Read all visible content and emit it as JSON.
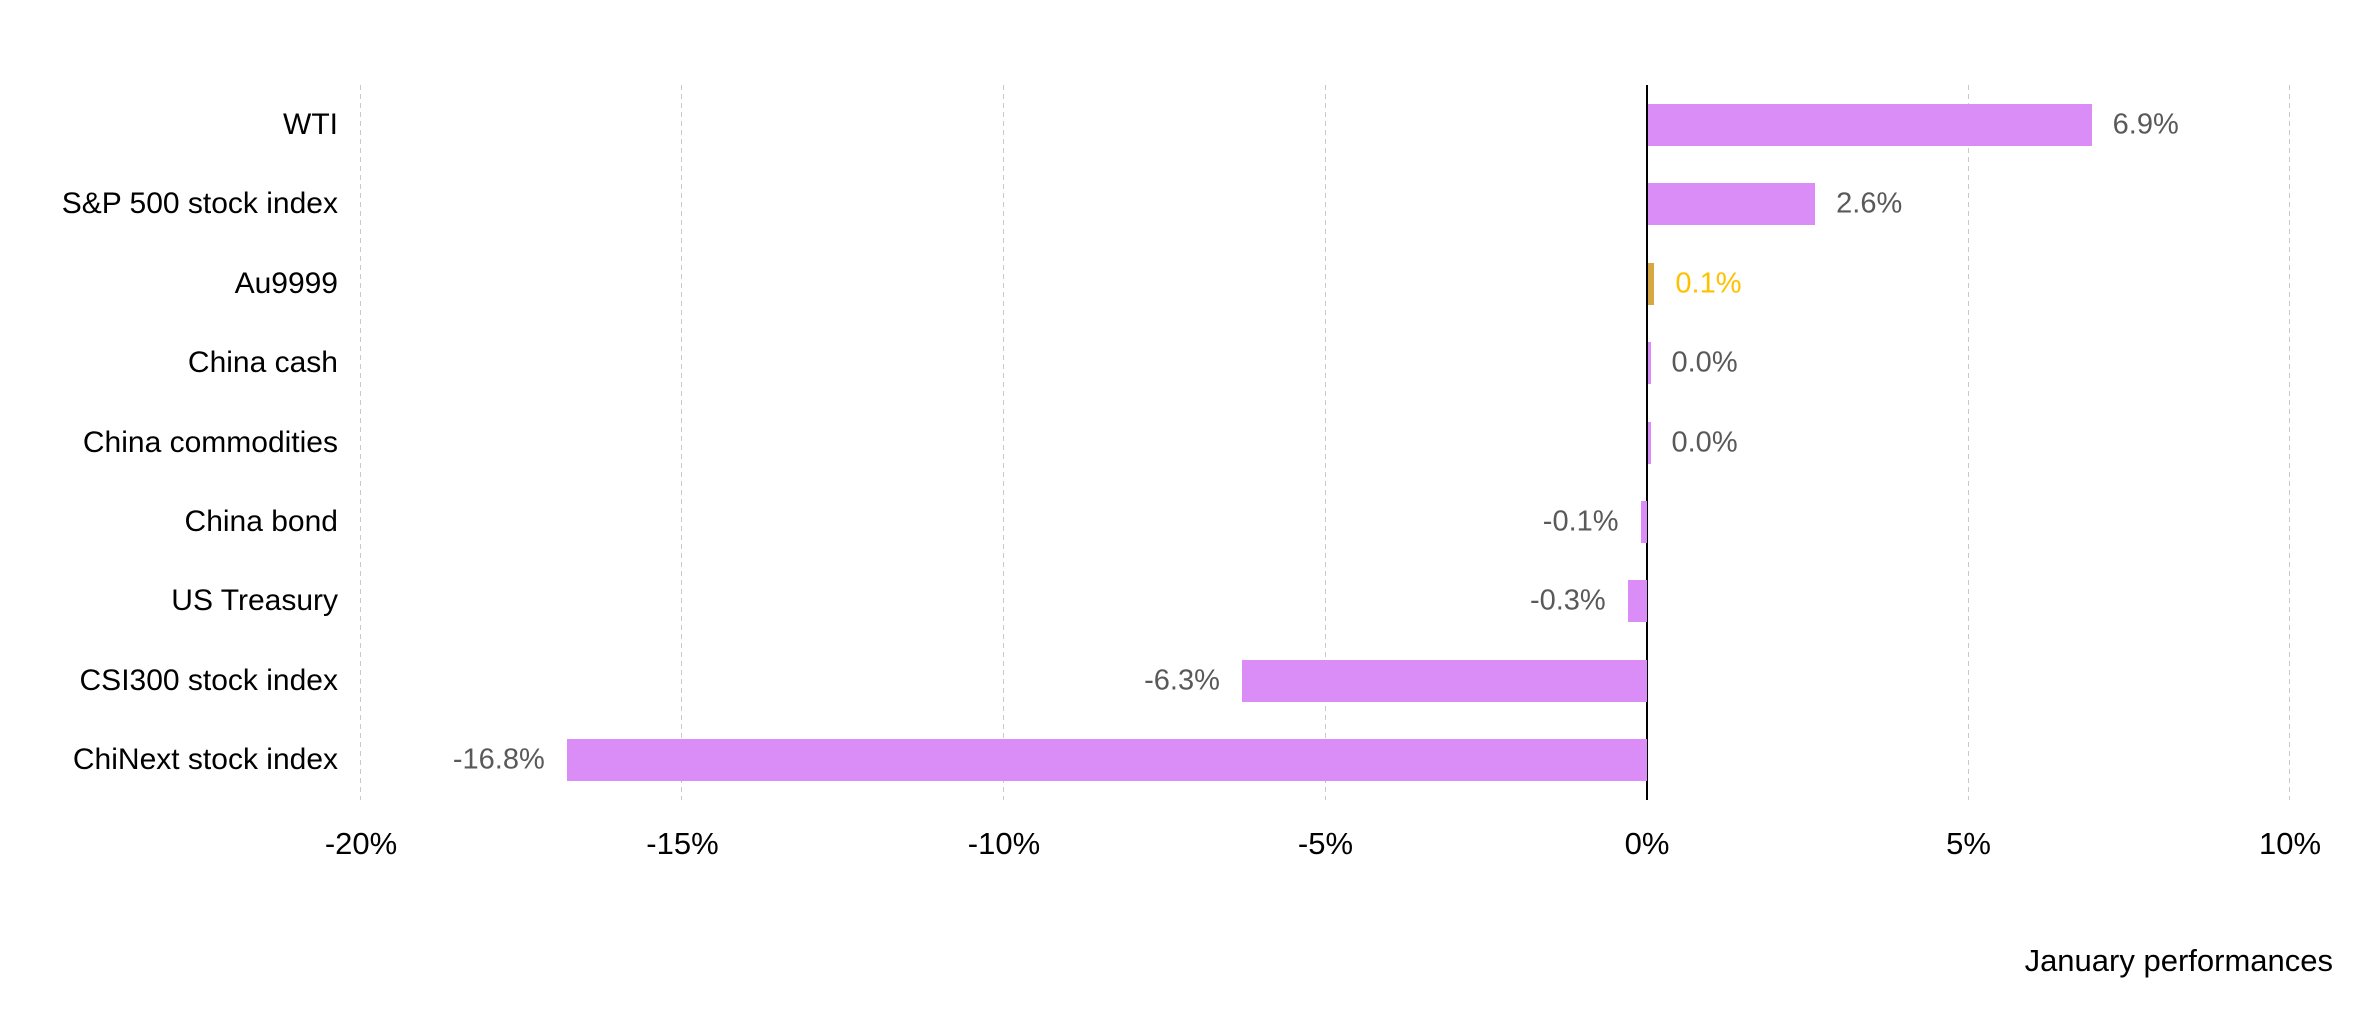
{
  "chart_data": {
    "type": "bar",
    "orientation": "horizontal",
    "title": "",
    "footer": "January performances",
    "categories": [
      "WTI",
      "S&P 500 stock index",
      "Au9999",
      "China cash",
      "China commodities",
      "China bond",
      "US Treasury",
      "CSI300 stock index",
      "ChiNext stock index"
    ],
    "values": [
      6.9,
      2.6,
      0.1,
      0.0,
      0.0,
      -0.1,
      -0.3,
      -6.3,
      -16.8
    ],
    "value_labels": [
      "6.9%",
      "2.6%",
      "0.1%",
      "0.0%",
      "0.0%",
      "-0.1%",
      "-0.3%",
      "-6.3%",
      "-16.8%"
    ],
    "xlabel": "",
    "ylabel": "",
    "xlim": [
      -20,
      10
    ],
    "x_ticks": [
      -20,
      -15,
      -10,
      -5,
      0,
      5,
      10
    ],
    "x_tick_labels": [
      "-20%",
      "-15%",
      "-10%",
      "-5%",
      "0%",
      "5%",
      "10%"
    ],
    "grid": "vertical-dashed",
    "legend": "none",
    "highlight_index": 2,
    "colors": {
      "bar_default": "#DA8CF7",
      "bar_highlight": "#D5A843",
      "value_label_default": "#595959",
      "value_label_highlight": "#FFC000",
      "gridline": "#C9C9C9",
      "axis_line": "#000000",
      "text": "#000000"
    }
  }
}
